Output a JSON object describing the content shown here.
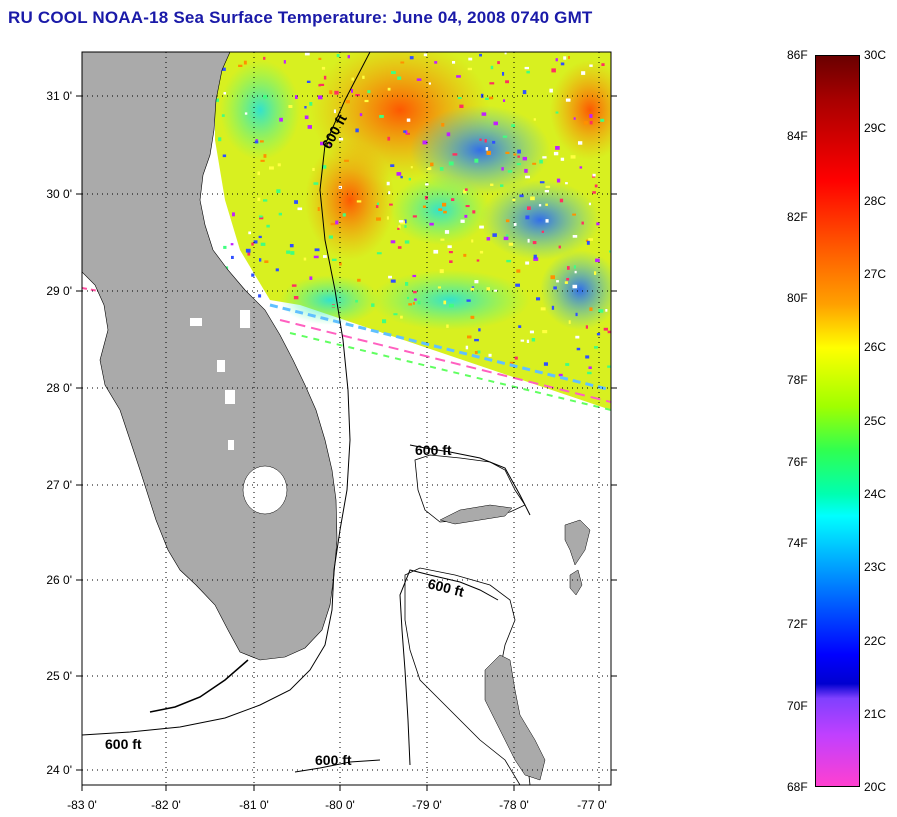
{
  "title": "RU COOL  NOAA-18  Sea Surface Temperature:  June 04, 2008 0740 GMT",
  "map": {
    "lat_ticks": [
      "31 0'",
      "30 0'",
      "29 0'",
      "28 0'",
      "27 0'",
      "26 0'",
      "25 0'",
      "24 0'"
    ],
    "lon_ticks": [
      "-83 0'",
      "-82 0'",
      "-81 0'",
      "-80 0'",
      "-79 0'",
      "-78 0'",
      "-77 0'"
    ],
    "contour_labels": [
      "600 ft",
      "600 ft",
      "600 ft",
      "600 ft",
      "600 ft"
    ],
    "extent": {
      "lon_min": -83,
      "lon_max": -76.85,
      "lat_min": 23.8,
      "lat_max": 31.4
    },
    "colors": {
      "land": "#aaaaaa",
      "water_no_data": "#ffffff"
    }
  },
  "colorbar": {
    "fahrenheit_labels": [
      "86F",
      "84F",
      "82F",
      "80F",
      "78F",
      "76F",
      "74F",
      "72F",
      "70F",
      "68F"
    ],
    "celsius_labels": [
      "30C",
      "29C",
      "28C",
      "27C",
      "26C",
      "25C",
      "24C",
      "23C",
      "22C",
      "21C",
      "20C"
    ],
    "range_f": [
      68,
      86
    ],
    "range_c": [
      20,
      30
    ]
  }
}
